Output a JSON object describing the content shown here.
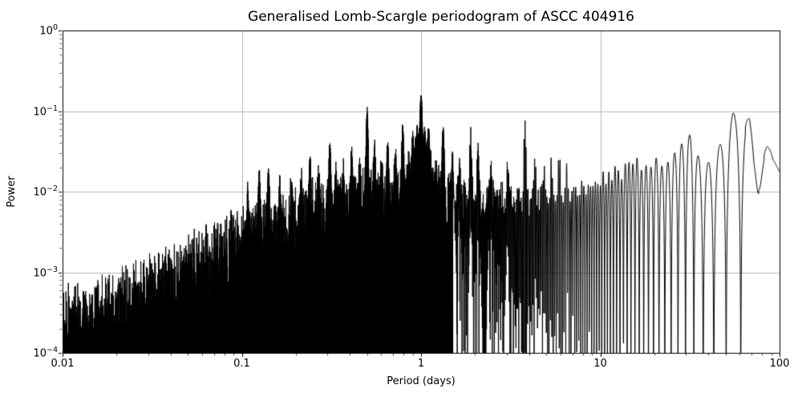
{
  "chart_data": {
    "type": "line",
    "title": "Generalised Lomb-Scargle periodogram of ASCC 404916",
    "xlabel": "Period (days)",
    "ylabel": "Power",
    "xscale": "log",
    "yscale": "log",
    "xlim": [
      0.01,
      100
    ],
    "ylim": [
      0.0001,
      1
    ],
    "grid": true,
    "grid_color": "#b4b4b4",
    "line_color": "#000000",
    "background": "#ffffff",
    "x_ticks": [
      {
        "label": "0.01",
        "value": 0.01
      },
      {
        "label": "0.1",
        "value": 0.1
      },
      {
        "label": "1",
        "value": 1
      },
      {
        "label": "10",
        "value": 10
      },
      {
        "label": "100",
        "value": 100
      }
    ],
    "y_ticks": [
      {
        "base": "10",
        "exp": "0",
        "value": 1
      },
      {
        "base": "10",
        "exp": "−1",
        "value": 0.1
      },
      {
        "base": "10",
        "exp": "−2",
        "value": 0.01
      },
      {
        "base": "10",
        "exp": "−3",
        "value": 0.001
      },
      {
        "base": "10",
        "exp": "−4",
        "value": 0.0001
      }
    ],
    "main_peaks": [
      [
        0.108,
        0.0075
      ],
      [
        0.125,
        0.0145
      ],
      [
        0.141,
        0.0145
      ],
      [
        0.163,
        0.0087
      ],
      [
        0.19,
        0.011
      ],
      [
        0.215,
        0.01
      ],
      [
        0.24,
        0.022
      ],
      [
        0.27,
        0.012
      ],
      [
        0.31,
        0.036
      ],
      [
        0.335,
        0.014
      ],
      [
        0.37,
        0.013
      ],
      [
        0.41,
        0.025
      ],
      [
        0.455,
        0.013
      ],
      [
        0.5,
        0.092
      ],
      [
        0.55,
        0.032
      ],
      [
        0.6,
        0.016
      ],
      [
        0.65,
        0.034
      ],
      [
        0.72,
        0.015
      ],
      [
        0.79,
        0.048
      ],
      [
        0.9,
        0.028
      ],
      [
        0.95,
        0.035
      ],
      [
        1.0,
        0.13,
        0.005
      ],
      [
        1.0,
        0.022,
        0.055
      ],
      [
        1.05,
        0.03
      ],
      [
        1.1,
        0.038
      ],
      [
        1.33,
        0.045
      ],
      [
        1.5,
        0.018
      ],
      [
        1.63,
        0.022
      ],
      [
        1.89,
        0.051
      ],
      [
        2.08,
        0.035
      ],
      [
        2.45,
        0.017
      ],
      [
        3.05,
        0.016
      ],
      [
        3.8,
        0.072
      ],
      [
        4.3,
        0.018
      ],
      [
        4.85,
        0.016
      ],
      [
        5.35,
        0.014
      ],
      [
        5.9,
        0.016
      ],
      [
        6.5,
        0.012
      ]
    ],
    "envelope": [
      [
        0.01,
        0.00028
      ],
      [
        0.02,
        0.00045
      ],
      [
        0.04,
        0.0009
      ],
      [
        0.07,
        0.0018
      ],
      [
        0.1,
        0.003
      ],
      [
        0.15,
        0.0038
      ],
      [
        0.2,
        0.0048
      ],
      [
        0.3,
        0.0066
      ],
      [
        0.5,
        0.0085
      ],
      [
        0.7,
        0.008
      ],
      [
        1.0,
        0.0105
      ],
      [
        1.5,
        0.009
      ],
      [
        2.0,
        0.009
      ],
      [
        3.0,
        0.0085
      ],
      [
        4.0,
        0.009
      ],
      [
        5.0,
        0.0085
      ],
      [
        7.0,
        0.0095
      ],
      [
        10,
        0.014
      ],
      [
        14,
        0.019
      ],
      [
        18,
        0.022
      ],
      [
        22,
        0.022
      ],
      [
        25,
        0.022
      ],
      [
        28,
        0.05
      ],
      [
        32,
        0.05
      ],
      [
        36,
        0.024
      ],
      [
        40,
        0.023
      ],
      [
        46,
        0.032
      ],
      [
        50,
        0.05
      ],
      [
        55,
        0.08
      ],
      [
        60,
        0.09
      ],
      [
        64,
        0.1
      ],
      [
        68,
        0.09
      ],
      [
        72,
        0.04
      ],
      [
        76,
        0.035
      ],
      [
        85,
        0.04
      ],
      [
        92,
        0.028
      ],
      [
        100,
        0.033
      ]
    ],
    "window_osc": {
      "delta_f": 0.0034,
      "phase": 0.16
    },
    "noise_seed": 7
  }
}
